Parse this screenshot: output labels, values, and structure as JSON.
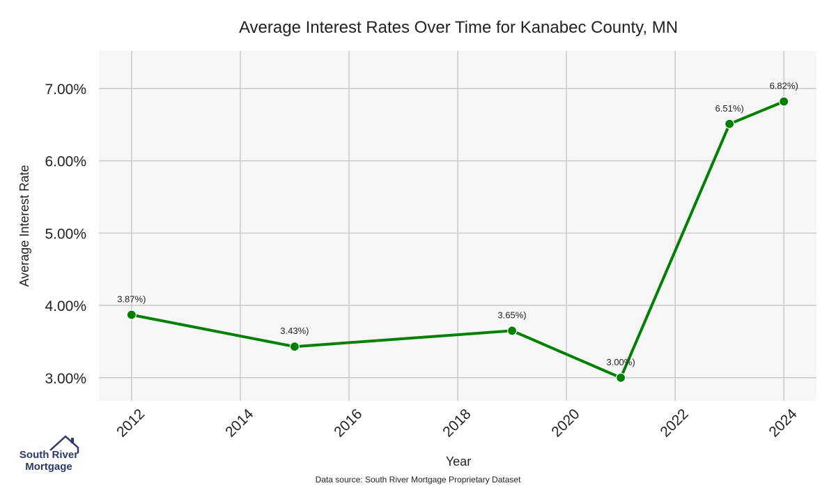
{
  "chart_data": {
    "type": "line",
    "title": "Average Interest Rates Over Time for Kanabec County, MN",
    "xlabel": "Year",
    "ylabel": "Average Interest Rate",
    "x": [
      2012,
      2015,
      2019,
      2021,
      2023,
      2024
    ],
    "series": [
      {
        "values": [
          3.87,
          3.43,
          3.65,
          3.0,
          6.51,
          6.82
        ],
        "labels": [
          "3.87%)",
          "3.43%)",
          "3.65%)",
          "3.00%)",
          "6.51%)",
          "6.82%)"
        ]
      }
    ],
    "xticks": [
      "2012",
      "2014",
      "2016",
      "2018",
      "2020",
      "2022",
      "2024"
    ],
    "yticks": [
      "3.00%",
      "4.00%",
      "5.00%",
      "6.00%",
      "7.00%"
    ],
    "xlim": [
      2011.4,
      2024.6
    ],
    "ylim": [
      2.68,
      7.52
    ],
    "grid": true,
    "line_color": "#008000",
    "plot_background": "#f7f7f7",
    "grid_color": "#cccccc"
  },
  "logo": {
    "line1": "South River",
    "line2": "Mortgage"
  },
  "source": "Data source: South River Mortgage Proprietary Dataset"
}
